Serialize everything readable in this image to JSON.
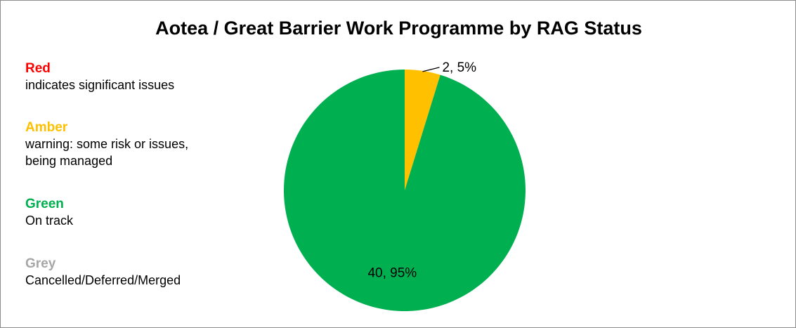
{
  "chart_data": {
    "type": "pie",
    "title": "Aotea / Great Barrier Work Programme by RAG Status",
    "slices": [
      {
        "label": "Amber",
        "value": 2,
        "percent": 5,
        "data_label": "2, 5%",
        "color": "#ffc000"
      },
      {
        "label": "Green",
        "value": 40,
        "percent": 95,
        "data_label": "40, 95%",
        "color": "#00b050"
      }
    ],
    "legend_position": "left"
  },
  "legend": {
    "items": [
      {
        "name": "Red",
        "color": "#ff0000",
        "lines": [
          "indicates significant issues"
        ]
      },
      {
        "name": "Amber",
        "color": "#ffc000",
        "lines": [
          "warning:  some risk or issues,",
          "being managed"
        ]
      },
      {
        "name": "Green",
        "color": "#00b050",
        "lines": [
          "On track"
        ]
      },
      {
        "name": "Grey",
        "color": "#a6a6a6",
        "lines": [
          "Cancelled/Deferred/Merged"
        ]
      }
    ]
  }
}
